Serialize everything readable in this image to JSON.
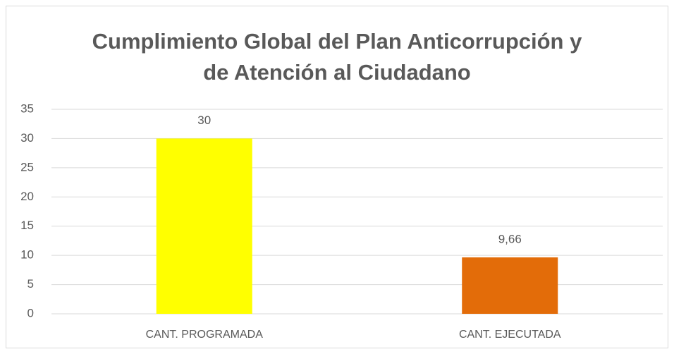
{
  "chart_data": {
    "type": "bar",
    "title": [
      "Cumplimiento Global del Plan Anticorrupción y",
      "de Atención al Ciudadano"
    ],
    "categories": [
      "CANT. PROGRAMADA",
      "CANT. EJECUTADA"
    ],
    "values": [
      30,
      9.66
    ],
    "value_labels": [
      "30",
      "9,66"
    ],
    "colors": [
      "#ffff00",
      "#e36c09"
    ],
    "ylim": [
      0,
      35
    ],
    "yticks": [
      0,
      5,
      10,
      15,
      20,
      25,
      30,
      35
    ],
    "grid": true
  }
}
